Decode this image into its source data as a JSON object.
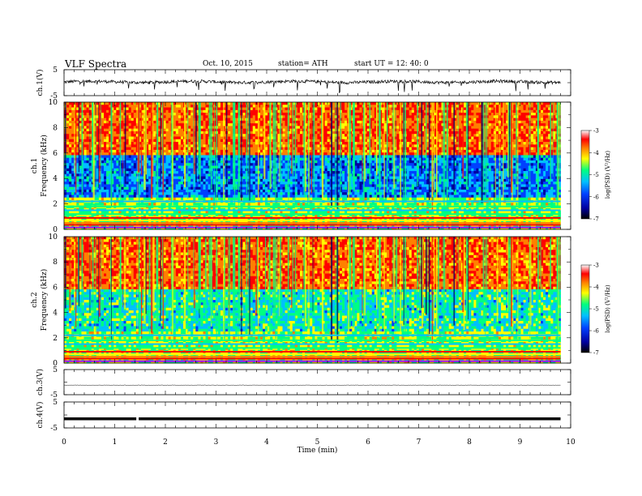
{
  "header": {
    "title": "VLF  Spectra",
    "date": "Oct. 10, 2015",
    "station": "station= ATH",
    "start": "start  UT  =   12: 40: 0"
  },
  "colors": {
    "spectrogram_colormap": [
      "#000000",
      "#0000a0",
      "#0040ff",
      "#00c0ff",
      "#00ff80",
      "#ffff00",
      "#ff8000",
      "#ff0000",
      "#ffffff"
    ]
  },
  "chart_data": [
    {
      "type": "line",
      "name": "ch.1",
      "ylabel": "ch.1(V)",
      "yticks": [
        "5",
        "-5"
      ],
      "ylim": [
        -5,
        5
      ],
      "x_range_min": [
        0,
        9.8
      ],
      "typical_value": 0.3,
      "noise_amplitude": 1.2
    },
    {
      "type": "heatmap",
      "ylabel_line1": "ch.1",
      "ylabel_line2": "Frequency  (kHz)",
      "yticks": [
        "0",
        "2",
        "4",
        "6",
        "8",
        "10"
      ],
      "ylim": [
        0,
        10
      ],
      "x_range_min": [
        0,
        9.8
      ],
      "colorbar": {
        "label": "log(PSD) (V²/Hz)",
        "ticks": [
          "-3",
          "-4",
          "-5",
          "-6",
          "-7"
        ],
        "range": [
          -7,
          -3
        ]
      }
    },
    {
      "type": "heatmap",
      "ylabel_line1": "ch.2",
      "ylabel_line2": "Frequency  (kHz)",
      "yticks": [
        "0",
        "2",
        "4",
        "6",
        "8",
        "10"
      ],
      "ylim": [
        0,
        10
      ],
      "x_range_min": [
        0,
        9.8
      ],
      "colorbar": {
        "label": "log(PSD) (V²/Hz)",
        "ticks": [
          "-3",
          "-4",
          "-5",
          "-6",
          "-7"
        ],
        "range": [
          -7,
          -3
        ]
      }
    },
    {
      "type": "line",
      "name": "ch.3",
      "ylabel": "ch.3(V)",
      "yticks": [
        "5",
        "-5"
      ],
      "ylim": [
        -5,
        5
      ],
      "x_range_min": [
        0,
        9.8
      ],
      "typical_value": -1.2
    },
    {
      "type": "line",
      "name": "ch.4",
      "ylabel": "ch.4(V)",
      "yticks": [
        "5",
        "-5"
      ],
      "ylim": [
        -5,
        5
      ],
      "x_range_min": [
        0,
        9.8
      ],
      "typical_value": -1.5,
      "gap_at_min": 1.45
    }
  ],
  "xaxis": {
    "label": "Time  (min)",
    "ticks": [
      "0",
      "1",
      "2",
      "3",
      "4",
      "5",
      "6",
      "7",
      "8",
      "9",
      "10"
    ],
    "xlim": [
      0,
      10
    ]
  }
}
